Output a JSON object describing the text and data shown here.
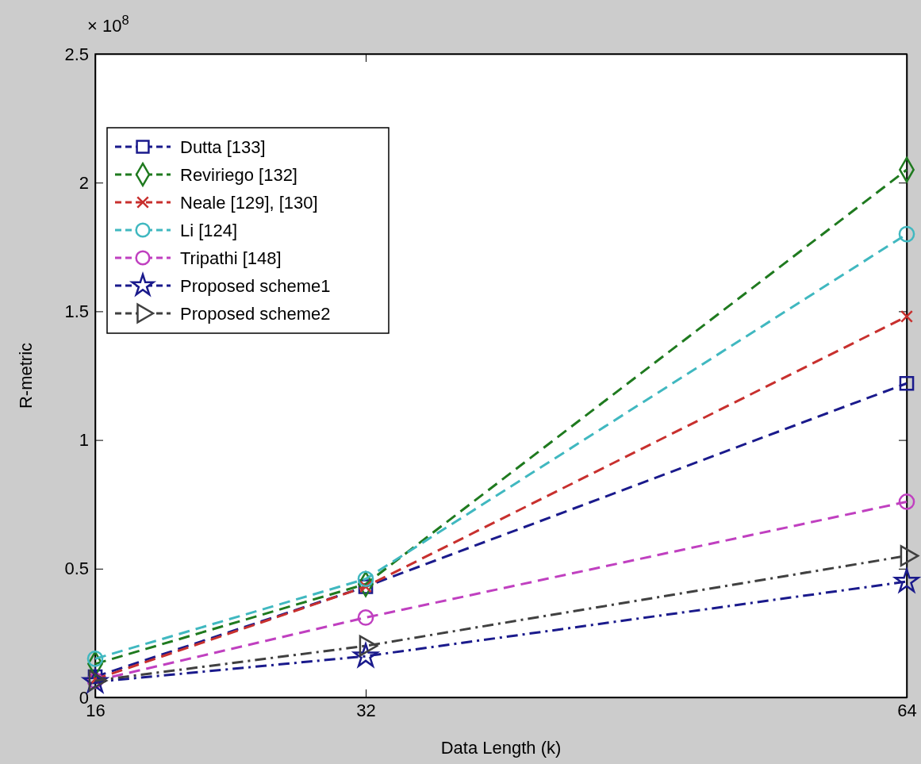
{
  "chart_data": {
    "type": "line",
    "xlabel": "Data Length (k)",
    "ylabel": "R-metric",
    "x": [
      16,
      32,
      64
    ],
    "xlim": [
      16,
      64
    ],
    "xticks": [
      16,
      32,
      64
    ],
    "ylim": [
      0,
      2.5
    ],
    "yticks": [
      0,
      0.5,
      1,
      1.5,
      2,
      2.5
    ],
    "grid": false,
    "legend": "top left",
    "annotations": [
      "× 10$^{8}$"
    ],
    "series": [
      {
        "name": "Dutta [133]",
        "color": "#1a1a8c",
        "marker": "square",
        "line_style": "dashed",
        "values": [
          0.08,
          0.43,
          1.22
        ]
      },
      {
        "name": "Reviriego [132]",
        "color": "#1f7a1f",
        "marker": "diamond",
        "line_style": "dashed",
        "values": [
          0.13,
          0.44,
          2.05
        ]
      },
      {
        "name": "Neale [129], [130]",
        "color": "#c8302e",
        "marker": "cross",
        "line_style": "dashed",
        "values": [
          0.07,
          0.43,
          1.48
        ]
      },
      {
        "name": "Li [124]",
        "color": "#40b8c0",
        "marker": "circle",
        "line_style": "dashed",
        "values": [
          0.15,
          0.46,
          1.8
        ]
      },
      {
        "name": "Tripathi [148]",
        "color": "#c040c0",
        "marker": "circle",
        "line_style": "dashed",
        "values": [
          0.065,
          0.31,
          0.76
        ]
      },
      {
        "name": "Proposed scheme1",
        "color": "#1a1a8c",
        "marker": "star",
        "line_style": "dotted",
        "values": [
          0.06,
          0.16,
          0.45
        ]
      },
      {
        "name": "Proposed scheme2",
        "color": "#404040",
        "marker": "triangle",
        "line_style": "dotted",
        "values": [
          0.065,
          0.2,
          0.55
        ]
      }
    ]
  }
}
